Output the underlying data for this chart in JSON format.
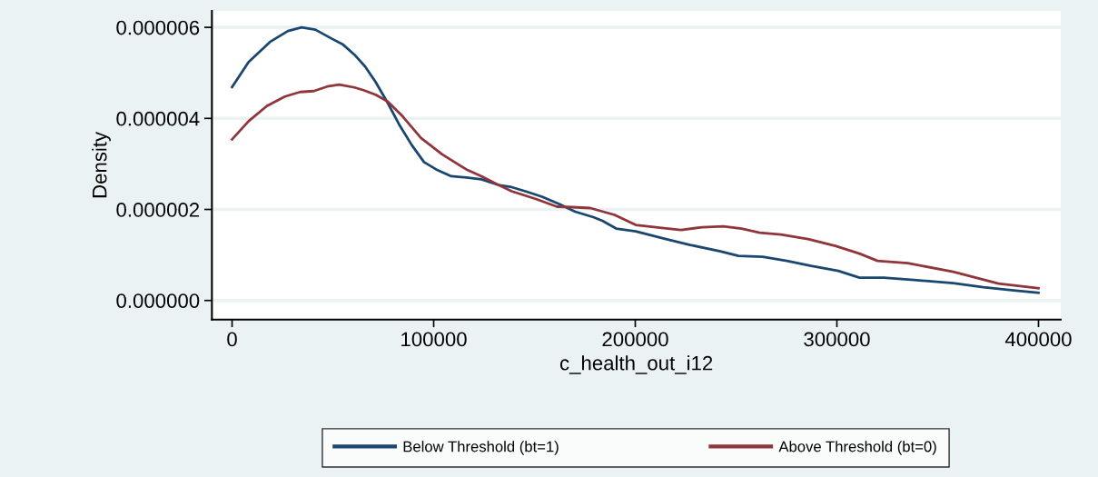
{
  "chart_data": {
    "type": "line",
    "xlabel": "c_health_out_i12",
    "ylabel": "Density",
    "xlim": [
      -10000,
      411000
    ],
    "xticks": [
      0,
      100000,
      200000,
      300000,
      400000
    ],
    "ylim": [
      -4.2e-07,
      6.36e-06
    ],
    "yticks": [
      {
        "value": 0,
        "label": "0.000000"
      },
      {
        "value": 2e-06,
        "label": "0.000002"
      },
      {
        "value": 4e-06,
        "label": "0.000004"
      },
      {
        "value": 6e-06,
        "label": "0.000006"
      }
    ],
    "grid": "y",
    "legend": "bottom",
    "line_style": "solid",
    "marker": "none",
    "series": [
      {
        "name": "Below Threshold (bt=1)",
        "color": "#1a476f",
        "x": [
          0,
          8200,
          18800,
          27700,
          34500,
          41300,
          49500,
          54800,
          60700,
          66000,
          71200,
          77200,
          83200,
          89200,
          95200,
          101200,
          108700,
          116200,
          123700,
          132700,
          138700,
          146200,
          153700,
          162700,
          170200,
          179200,
          183700,
          190500,
          200200,
          215200,
          227200,
          242200,
          251200,
          263200,
          275200,
          287200,
          300700,
          311200,
          323200,
          338200,
          357700,
          372700,
          387700,
          400000
        ],
        "values": [
          4.69e-06,
          5.24e-06,
          5.68e-06,
          5.92e-06,
          6e-06,
          5.95e-06,
          5.75e-06,
          5.63e-06,
          5.4e-06,
          5.14e-06,
          4.8e-06,
          4.34e-06,
          3.84e-06,
          3.41e-06,
          3.04e-06,
          2.88e-06,
          2.73e-06,
          2.7e-06,
          2.66e-06,
          2.53e-06,
          2.49e-06,
          2.39e-06,
          2.28e-06,
          2.11e-06,
          1.95e-06,
          1.83e-06,
          1.75e-06,
          1.58e-06,
          1.52e-06,
          1.35e-06,
          1.22e-06,
          1.08e-06,
          9.8e-07,
          9.6e-07,
          8.7e-07,
          7.6e-07,
          6.5e-07,
          5e-07,
          5e-07,
          4.5e-07,
          3.8e-07,
          2.9e-07,
          2.2e-07,
          1.7e-07
        ]
      },
      {
        "name": "Above Threshold (bt=0)",
        "color": "#90353b",
        "x": [
          0,
          8200,
          17200,
          26200,
          33700,
          40500,
          47200,
          53200,
          60700,
          65200,
          71200,
          77200,
          84700,
          93700,
          104200,
          116200,
          123700,
          131200,
          138700,
          150700,
          161200,
          168700,
          177700,
          189700,
          200200,
          212200,
          222700,
          233200,
          243700,
          252700,
          261700,
          272200,
          285700,
          299200,
          311200,
          320200,
          335200,
          357700,
          380200,
          400000
        ],
        "values": [
          3.54e-06,
          3.94e-06,
          4.27e-06,
          4.48e-06,
          4.58e-06,
          4.6e-06,
          4.7e-06,
          4.74e-06,
          4.68e-06,
          4.62e-06,
          4.52e-06,
          4.37e-06,
          4.04e-06,
          3.57e-06,
          3.21e-06,
          2.88e-06,
          2.73e-06,
          2.56e-06,
          2.4e-06,
          2.23e-06,
          2.06e-06,
          2.05e-06,
          2.03e-06,
          1.88e-06,
          1.66e-06,
          1.6e-06,
          1.55e-06,
          1.61e-06,
          1.63e-06,
          1.58e-06,
          1.49e-06,
          1.45e-06,
          1.35e-06,
          1.2e-06,
          1.03e-06,
          8.7e-07,
          8.2e-07,
          6.3e-07,
          3.7e-07,
          2.7e-07
        ]
      }
    ]
  }
}
